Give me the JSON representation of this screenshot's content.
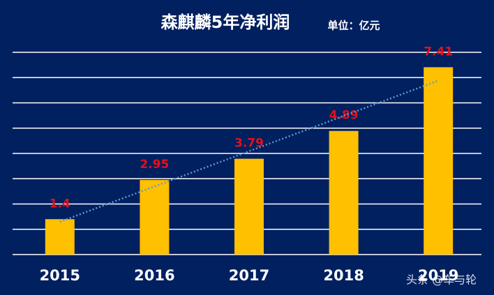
{
  "chart_data": {
    "type": "bar",
    "title": "森麒麟5年净利润",
    "unit": "单位：亿元",
    "categories": [
      "2015",
      "2016",
      "2017",
      "2018",
      "2019"
    ],
    "values": [
      1.4,
      2.95,
      3.79,
      4.89,
      7.41
    ],
    "color": "#ffc000",
    "label_color": "#e3101a",
    "ylim": [
      0,
      8
    ],
    "yticks": [
      0,
      1,
      2,
      3,
      4,
      5,
      6,
      7,
      8
    ],
    "grid": true,
    "trendline": true,
    "trend_color": "#5b9bd5",
    "watermark": "头条 @车与轮"
  }
}
